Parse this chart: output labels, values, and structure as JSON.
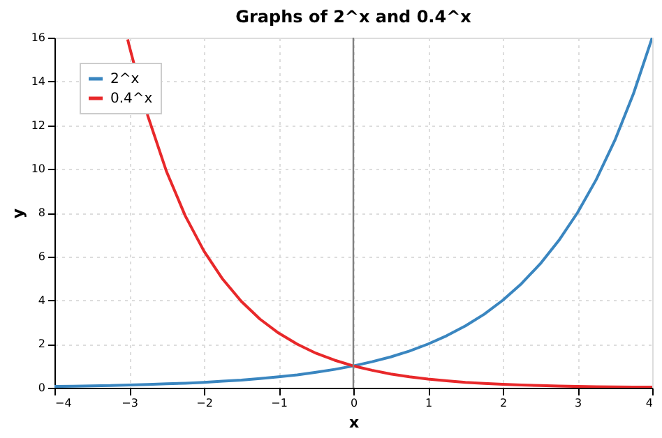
{
  "chart_data": {
    "type": "line",
    "title": "Graphs of 2^x and 0.4^x",
    "xlabel": "x",
    "ylabel": "y",
    "xlim": [
      -4,
      4
    ],
    "xticks": [
      -4,
      -3,
      -2,
      -1,
      0,
      1,
      2,
      3,
      4
    ],
    "ylim": [
      0,
      16
    ],
    "yticks": [
      0,
      2,
      4,
      6,
      8,
      10,
      12,
      14,
      16
    ],
    "grid": true,
    "legend": "top left",
    "line_style": "solid",
    "ref_lines": [
      {
        "axis": "x",
        "value": 0,
        "color": "#808080"
      }
    ],
    "series": [
      {
        "name": "2^x",
        "color": "#3a86c0",
        "x": [
          -4,
          -3.75,
          -3.5,
          -3.25,
          -3,
          -2.75,
          -2.5,
          -2.25,
          -2,
          -1.75,
          -1.5,
          -1.25,
          -1,
          -0.75,
          -0.5,
          -0.25,
          0,
          0.25,
          0.5,
          0.75,
          1,
          1.25,
          1.5,
          1.75,
          2,
          2.25,
          2.5,
          2.75,
          3,
          3.25,
          3.5,
          3.75,
          4
        ],
        "values": [
          0.06,
          0.07,
          0.09,
          0.1,
          0.13,
          0.15,
          0.18,
          0.21,
          0.25,
          0.3,
          0.35,
          0.42,
          0.5,
          0.59,
          0.71,
          0.84,
          1,
          1.19,
          1.41,
          1.68,
          2,
          2.38,
          2.83,
          3.36,
          4,
          4.76,
          5.66,
          6.73,
          8,
          9.51,
          11.31,
          13.45,
          16
        ]
      },
      {
        "name": "0.4^x",
        "color": "#e8282a",
        "x": [
          -3.02,
          -3,
          -2.75,
          -2.5,
          -2.25,
          -2,
          -1.75,
          -1.5,
          -1.25,
          -1,
          -0.75,
          -0.5,
          -0.25,
          0,
          0.25,
          0.5,
          0.75,
          1,
          1.25,
          1.5,
          1.75,
          2,
          2.25,
          2.5,
          2.75,
          3,
          3.25,
          3.5,
          3.75,
          4
        ],
        "values": [
          15.92,
          15.63,
          12.42,
          9.88,
          7.86,
          6.25,
          4.97,
          3.95,
          3.14,
          2.5,
          1.99,
          1.58,
          1.26,
          1,
          0.8,
          0.63,
          0.5,
          0.4,
          0.32,
          0.25,
          0.2,
          0.16,
          0.13,
          0.1,
          0.08,
          0.06,
          0.05,
          0.04,
          0.03,
          0.03
        ]
      }
    ]
  }
}
